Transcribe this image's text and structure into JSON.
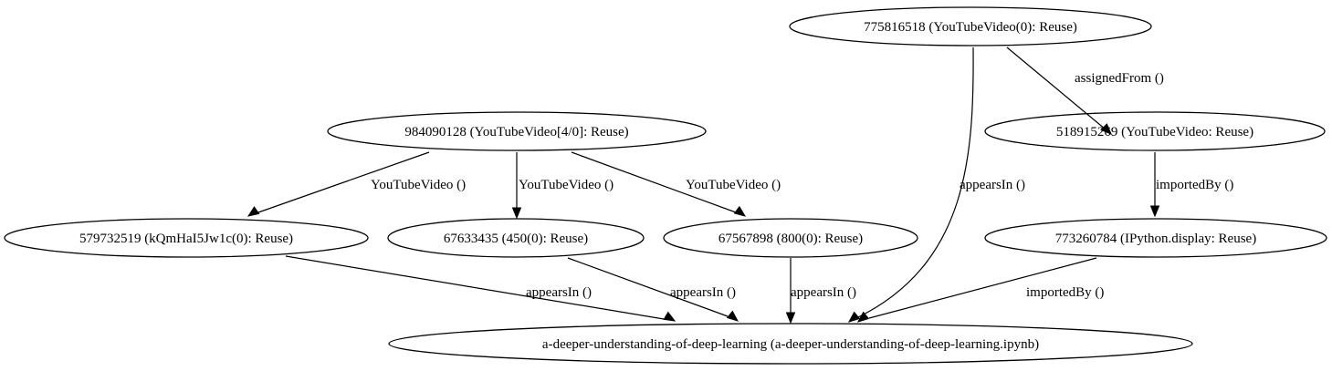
{
  "nodes": [
    {
      "id": "n775816518",
      "label": "775816518 (YouTubeVideo(0): Reuse)"
    },
    {
      "id": "n518915269",
      "label": "518915269 (YouTubeVideo: Reuse)"
    },
    {
      "id": "n984090128",
      "label": "984090128 (YouTubeVideo[4/0]: Reuse)"
    },
    {
      "id": "n579732519",
      "label": "579732519 (kQmHaI5Jw1c(0): Reuse)"
    },
    {
      "id": "n67633435",
      "label": "67633435 (450(0): Reuse)"
    },
    {
      "id": "n67567898",
      "label": "67567898 (800(0): Reuse)"
    },
    {
      "id": "n773260784",
      "label": "773260784 (IPython.display: Reuse)"
    },
    {
      "id": "nnotebook",
      "label": "a-deeper-understanding-of-deep-learning (a-deeper-understanding-of-deep-learning.ipynb)"
    }
  ],
  "edges": [
    {
      "id": "e1",
      "from": "n775816518",
      "to": "n518915269",
      "label": "assignedFrom ()"
    },
    {
      "id": "e2",
      "from": "n775816518",
      "to": "nnotebook",
      "label": "appearsIn ()"
    },
    {
      "id": "e3",
      "from": "n518915269",
      "to": "n773260784",
      "label": "importedBy ()"
    },
    {
      "id": "e4",
      "from": "n984090128",
      "to": "n579732519",
      "label": "YouTubeVideo ()"
    },
    {
      "id": "e5",
      "from": "n984090128",
      "to": "n67633435",
      "label": "YouTubeVideo ()"
    },
    {
      "id": "e6",
      "from": "n984090128",
      "to": "n67567898",
      "label": "YouTubeVideo ()"
    },
    {
      "id": "e7",
      "from": "n579732519",
      "to": "nnotebook",
      "label": "appearsIn ()"
    },
    {
      "id": "e8",
      "from": "n67633435",
      "to": "nnotebook",
      "label": "appearsIn ()"
    },
    {
      "id": "e9",
      "from": "n67567898",
      "to": "nnotebook",
      "label": "appearsIn ()"
    },
    {
      "id": "e10",
      "from": "n773260784",
      "to": "nnotebook",
      "label": "importedBy ()"
    }
  ]
}
